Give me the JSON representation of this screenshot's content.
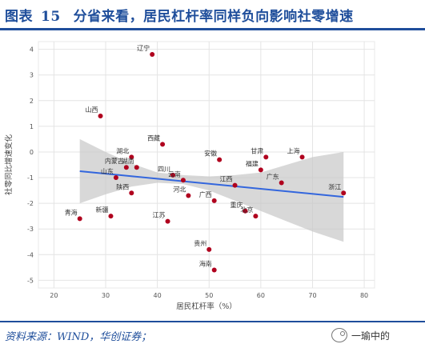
{
  "header": {
    "figure_label": "图表",
    "figure_number": "15",
    "title": "分省来看，居民杠杆率同样负向影响社零增速"
  },
  "footer": {
    "source": "资料来源：WIND，华创证券；",
    "watermark_text": "一瑜中的",
    "watermark_icon": "wechat-icon"
  },
  "colors": {
    "title": "#1f4e9b",
    "point": "#b0001e",
    "fit_line": "#3366dd",
    "confidence_band": "#c8c8c8",
    "grid": "#e4e4e4"
  },
  "chart_data": {
    "type": "scatter",
    "title": "",
    "xlabel": "居民杠杆率（%）",
    "ylabel": "社零同比增速变化",
    "xlim": [
      17,
      82
    ],
    "ylim": [
      -5.3,
      4.3
    ],
    "xticks": [
      20,
      30,
      40,
      50,
      60,
      70,
      80
    ],
    "yticks": [
      -5,
      -4,
      -3,
      -2,
      -1,
      0,
      1,
      2,
      3,
      4
    ],
    "grid": true,
    "points": [
      {
        "label": "辽宁",
        "x": 39.0,
        "y": 3.8
      },
      {
        "label": "山西",
        "x": 29.0,
        "y": 1.4
      },
      {
        "label": "西藏",
        "x": 41.0,
        "y": 0.3
      },
      {
        "label": "湖北",
        "x": 35.0,
        "y": -0.2
      },
      {
        "label": "内蒙古",
        "x": 34.0,
        "y": -0.6
      },
      {
        "label": "湖南",
        "x": 36.0,
        "y": -0.6
      },
      {
        "label": "山东",
        "x": 32.0,
        "y": -1.0
      },
      {
        "label": "四川",
        "x": 43.0,
        "y": -0.9
      },
      {
        "label": "云南",
        "x": 45.0,
        "y": -1.1
      },
      {
        "label": "陕西",
        "x": 35.0,
        "y": -1.6
      },
      {
        "label": "河北",
        "x": 46.0,
        "y": -1.7
      },
      {
        "label": "安徽",
        "x": 52.0,
        "y": -0.3
      },
      {
        "label": "甘肃",
        "x": 61.0,
        "y": -0.2
      },
      {
        "label": "上海",
        "x": 68.0,
        "y": -0.2
      },
      {
        "label": "福建",
        "x": 60.0,
        "y": -0.7
      },
      {
        "label": "广东",
        "x": 64.0,
        "y": -1.2
      },
      {
        "label": "江西",
        "x": 55.0,
        "y": -1.3
      },
      {
        "label": "广西",
        "x": 51.0,
        "y": -1.9
      },
      {
        "label": "重庆",
        "x": 57.0,
        "y": -2.3
      },
      {
        "label": "北京",
        "x": 59.0,
        "y": -2.5
      },
      {
        "label": "浙江",
        "x": 76.0,
        "y": -1.6
      },
      {
        "label": "青海",
        "x": 25.0,
        "y": -2.6
      },
      {
        "label": "新疆",
        "x": 31.0,
        "y": -2.5
      },
      {
        "label": "江苏",
        "x": 42.0,
        "y": -2.7
      },
      {
        "label": "贵州",
        "x": 50.0,
        "y": -3.8
      },
      {
        "label": "海南",
        "x": 51.0,
        "y": -4.6
      }
    ],
    "fit_line": {
      "x": [
        25,
        76
      ],
      "y": [
        -0.75,
        -1.75
      ]
    },
    "confidence_band": {
      "x": [
        25,
        30,
        35,
        40,
        45,
        50,
        55,
        60,
        65,
        70,
        76
      ],
      "upper": [
        0.5,
        0.0,
        -0.45,
        -0.8,
        -0.9,
        -0.95,
        -0.9,
        -0.8,
        -0.5,
        -0.2,
        0.0
      ],
      "lower": [
        -2.0,
        -1.65,
        -1.35,
        -1.2,
        -1.25,
        -1.5,
        -1.9,
        -2.3,
        -2.7,
        -3.1,
        -3.5
      ]
    }
  }
}
